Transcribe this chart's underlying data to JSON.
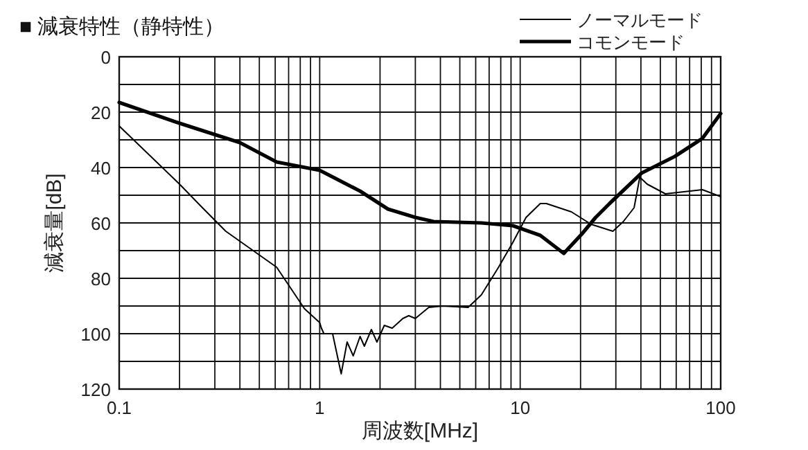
{
  "chart_data": {
    "type": "line",
    "title": "■ 減衰特性（静特性）",
    "xlabel": "周波数[MHz]",
    "ylabel": "減衰量[dB]",
    "log": "x",
    "grid": true,
    "legend": "top right",
    "xlim": [
      0.1,
      100
    ],
    "ylim": [
      120,
      0
    ],
    "xticks": [
      0.1,
      {
        "value": 0.2,
        "label": null
      },
      {
        "value": 0.3,
        "label": null
      },
      {
        "value": 0.4,
        "label": null
      },
      {
        "value": 0.5,
        "label": null
      },
      {
        "value": 0.6,
        "label": null
      },
      {
        "value": 0.7,
        "label": null
      },
      {
        "value": 0.8,
        "label": null
      },
      {
        "value": 0.9,
        "label": null
      },
      1,
      {
        "value": 2,
        "label": null
      },
      {
        "value": 3,
        "label": null
      },
      {
        "value": 4,
        "label": null
      },
      {
        "value": 5,
        "label": null
      },
      {
        "value": 6,
        "label": null
      },
      {
        "value": 7,
        "label": null
      },
      {
        "value": 8,
        "label": null
      },
      {
        "value": 9,
        "label": null
      },
      10,
      {
        "value": 20,
        "label": null
      },
      {
        "value": 30,
        "label": null
      },
      {
        "value": 40,
        "label": null
      },
      {
        "value": 50,
        "label": null
      },
      {
        "value": 60,
        "label": null
      },
      {
        "value": 70,
        "label": null
      },
      {
        "value": 80,
        "label": null
      },
      {
        "value": 90,
        "label": null
      },
      100
    ],
    "yticks": [
      0,
      {
        "value": 10,
        "label": null
      },
      20,
      {
        "value": 30,
        "label": null
      },
      40,
      {
        "value": 50,
        "label": null
      },
      60,
      {
        "value": 70,
        "label": null
      },
      80,
      {
        "value": 90,
        "label": null
      },
      100,
      {
        "value": 110,
        "label": null
      },
      120
    ],
    "series": [
      {
        "name": "ノーマルモード",
        "color": "#000000",
        "x": [
          0.1,
          0.2,
          0.26,
          0.34,
          0.61,
          0.84,
          1.0,
          1.02,
          1.05,
          1.16,
          1.28,
          1.37,
          1.47,
          1.59,
          1.67,
          1.81,
          1.93,
          2.1,
          2.3,
          2.6,
          2.78,
          3.0,
          3.5,
          4.1,
          5.5,
          6.4,
          7.8,
          9.2,
          10.7,
          12.6,
          13.5,
          18,
          22.6,
          29,
          32.7,
          37,
          39.5,
          43,
          53,
          81,
          100
        ],
        "values": [
          25,
          46,
          54.5,
          63,
          76,
          91,
          96,
          98,
          100,
          100,
          114.5,
          103,
          108,
          101,
          104.5,
          98.5,
          103,
          97,
          98,
          94.5,
          93.5,
          94.5,
          90.5,
          90,
          90.5,
          86,
          76,
          67,
          58,
          53,
          53,
          56,
          60.5,
          63,
          59.5,
          54.5,
          43.5,
          46,
          49.5,
          48,
          50.5
        ]
      },
      {
        "name": "コモンモード",
        "color": "#000000",
        "x": [
          0.1,
          0.2,
          0.4,
          0.61,
          1.0,
          1.59,
          2.19,
          3.0,
          3.7,
          6.4,
          9.2,
          12.6,
          16.5,
          20.3,
          23.8,
          27.9,
          40.3,
          59,
          81,
          100
        ],
        "values": [
          16.5,
          24,
          31,
          38,
          41,
          48.5,
          55,
          58,
          59.5,
          60,
          61,
          64.5,
          71,
          64,
          58,
          53,
          42,
          36,
          29.5,
          20.5
        ]
      }
    ]
  }
}
